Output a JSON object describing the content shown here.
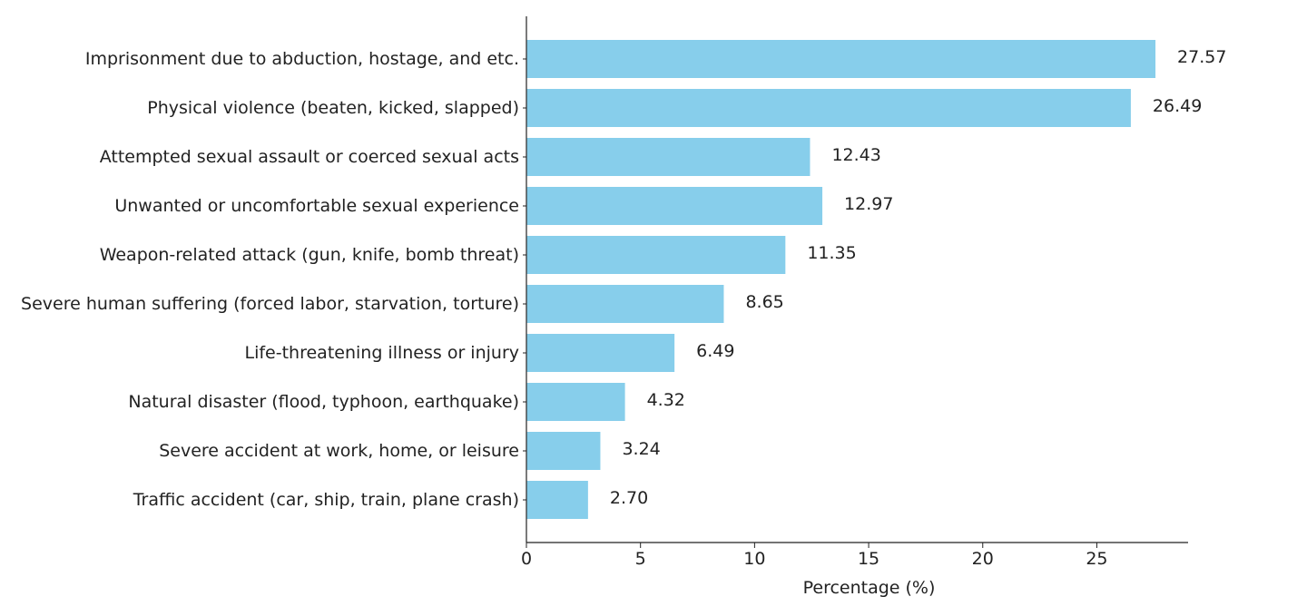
{
  "chart_data": {
    "type": "bar",
    "orientation": "horizontal",
    "categories": [
      "Imprisonment due to abduction, hostage, and etc.",
      "Physical violence (beaten, kicked, slapped)",
      "Attempted sexual assault or coerced sexual acts",
      "Unwanted or uncomfortable sexual experience",
      "Weapon-related attack (gun, knife, bomb threat)",
      "Severe human suffering (forced labor, starvation, torture)",
      "Life-threatening illness or injury",
      "Natural disaster (flood, typhoon, earthquake)",
      "Severe accident at work, home, or leisure",
      "Traffic accident (car, ship, train, plane crash)"
    ],
    "values": [
      27.57,
      26.49,
      12.43,
      12.97,
      11.35,
      8.65,
      6.49,
      4.32,
      3.24,
      2.7
    ],
    "value_labels": [
      "27.57",
      "26.49",
      "12.43",
      "12.97",
      "11.35",
      "8.65",
      "6.49",
      "4.32",
      "3.24",
      "2.70"
    ],
    "xlabel": "Percentage (%)",
    "ylabel": "",
    "xlim": [
      0,
      29
    ],
    "xticks": [
      0,
      5,
      10,
      15,
      20,
      25
    ],
    "grid": false,
    "bar_color": "#87ceeb"
  }
}
